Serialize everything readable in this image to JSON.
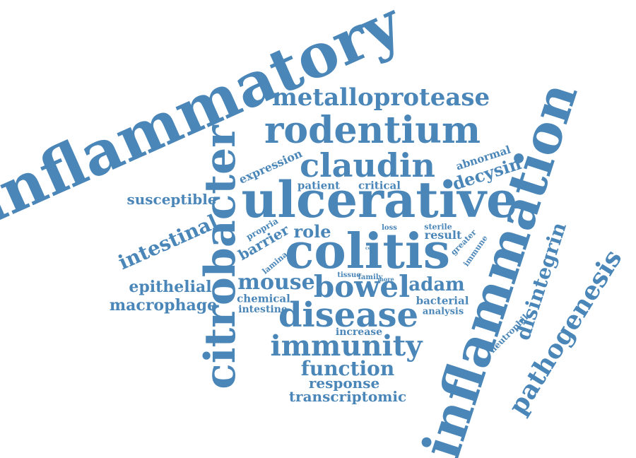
{
  "cloud": {
    "color": "#4a86b8",
    "words": {
      "inflammatory": "inflammatory",
      "inflammation": "inflammation",
      "citrobacter": "citrobacter",
      "ulcerative": "ulcerative",
      "colitis": "colitis",
      "rodentium": "rodentium",
      "metalloprotease": "metalloprotease",
      "claudin": "claudin",
      "disease": "disease",
      "bowel": "bowel",
      "immunity": "immunity",
      "function": "function",
      "response": "response",
      "transcriptomic": "transcriptomic",
      "pathogenesis": "pathogenesis",
      "disintegrin": "disintegrin",
      "decysin": "decysin",
      "abnormal": "abnormal",
      "expression": "expression",
      "patient": "patient",
      "critical": "critical",
      "susceptible": "susceptible",
      "intestinal": "intestinal",
      "role": "role",
      "barrier": "barrier",
      "propria": "propria",
      "lamina": "lamina",
      "loss": "loss",
      "cell": "cell",
      "sterile": "sterile",
      "result": "result",
      "greater": "greater",
      "immune": "immune",
      "mouse": "mouse",
      "adam": "adam",
      "tissue": "tissue",
      "family": "family",
      "more": "more",
      "epithelial": "epithelial",
      "macrophage": "macrophage",
      "chemical": "chemical",
      "intestine": "intestine",
      "bacterial": "bacterial",
      "analysis": "analysis",
      "increase": "increase",
      "neutrophil": "neutrophil"
    }
  }
}
